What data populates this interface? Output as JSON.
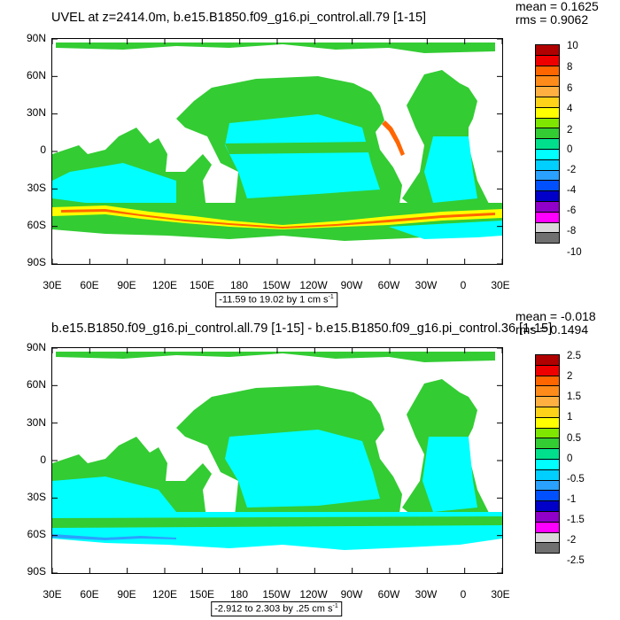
{
  "palette": [
    "#b00000",
    "#ee0000",
    "#ff6600",
    "#ff8c1a",
    "#ffb040",
    "#ffd21a",
    "#ffff00",
    "#7fe600",
    "#33cc33",
    "#00e08c",
    "#00ffff",
    "#00cfff",
    "#2aa0ff",
    "#0050ff",
    "#0000c8",
    "#9000c8",
    "#ff00ff",
    "#d9d9d9",
    "#707070"
  ],
  "map": {
    "latitude_labels": [
      "90N",
      "60N",
      "30N",
      "0",
      "30S",
      "60S",
      "90S"
    ],
    "longitude_labels": [
      "30E",
      "60E",
      "90E",
      "120E",
      "150E",
      "180",
      "150W",
      "120W",
      "90W",
      "60W",
      "30W",
      "0",
      "30E"
    ]
  },
  "top": {
    "title": "UVEL at z=2414.0m, b.e15.B1850.f09_g16.pi_control.all.79 [1-15]",
    "mean": "mean = 0.1625",
    "rms": "rms = 0.9062",
    "range_text": "-11.59 to 19.02 by 1 cm s",
    "range_unit_exp": "-1",
    "colorbar_labels": [
      "10",
      "8",
      "6",
      "4",
      "2",
      "0",
      "-2",
      "-4",
      "-6",
      "-8",
      "-10"
    ]
  },
  "bottom": {
    "title": "b.e15.B1850.f09_g16.pi_control.all.79 [1-15] - b.e15.B1850.f09_g16.pi_control.36 [1-15]",
    "mean": "mean = -0.018",
    "rms": "rms = 0.1494",
    "range_text": "-2.912 to 2.303 by .25 cm s",
    "range_unit_exp": "-1",
    "colorbar_labels": [
      "2.5",
      "2",
      "1.5",
      "1",
      "0.5",
      "0",
      "-0.5",
      "-1",
      "-1.5",
      "-2",
      "-2.5"
    ]
  }
}
